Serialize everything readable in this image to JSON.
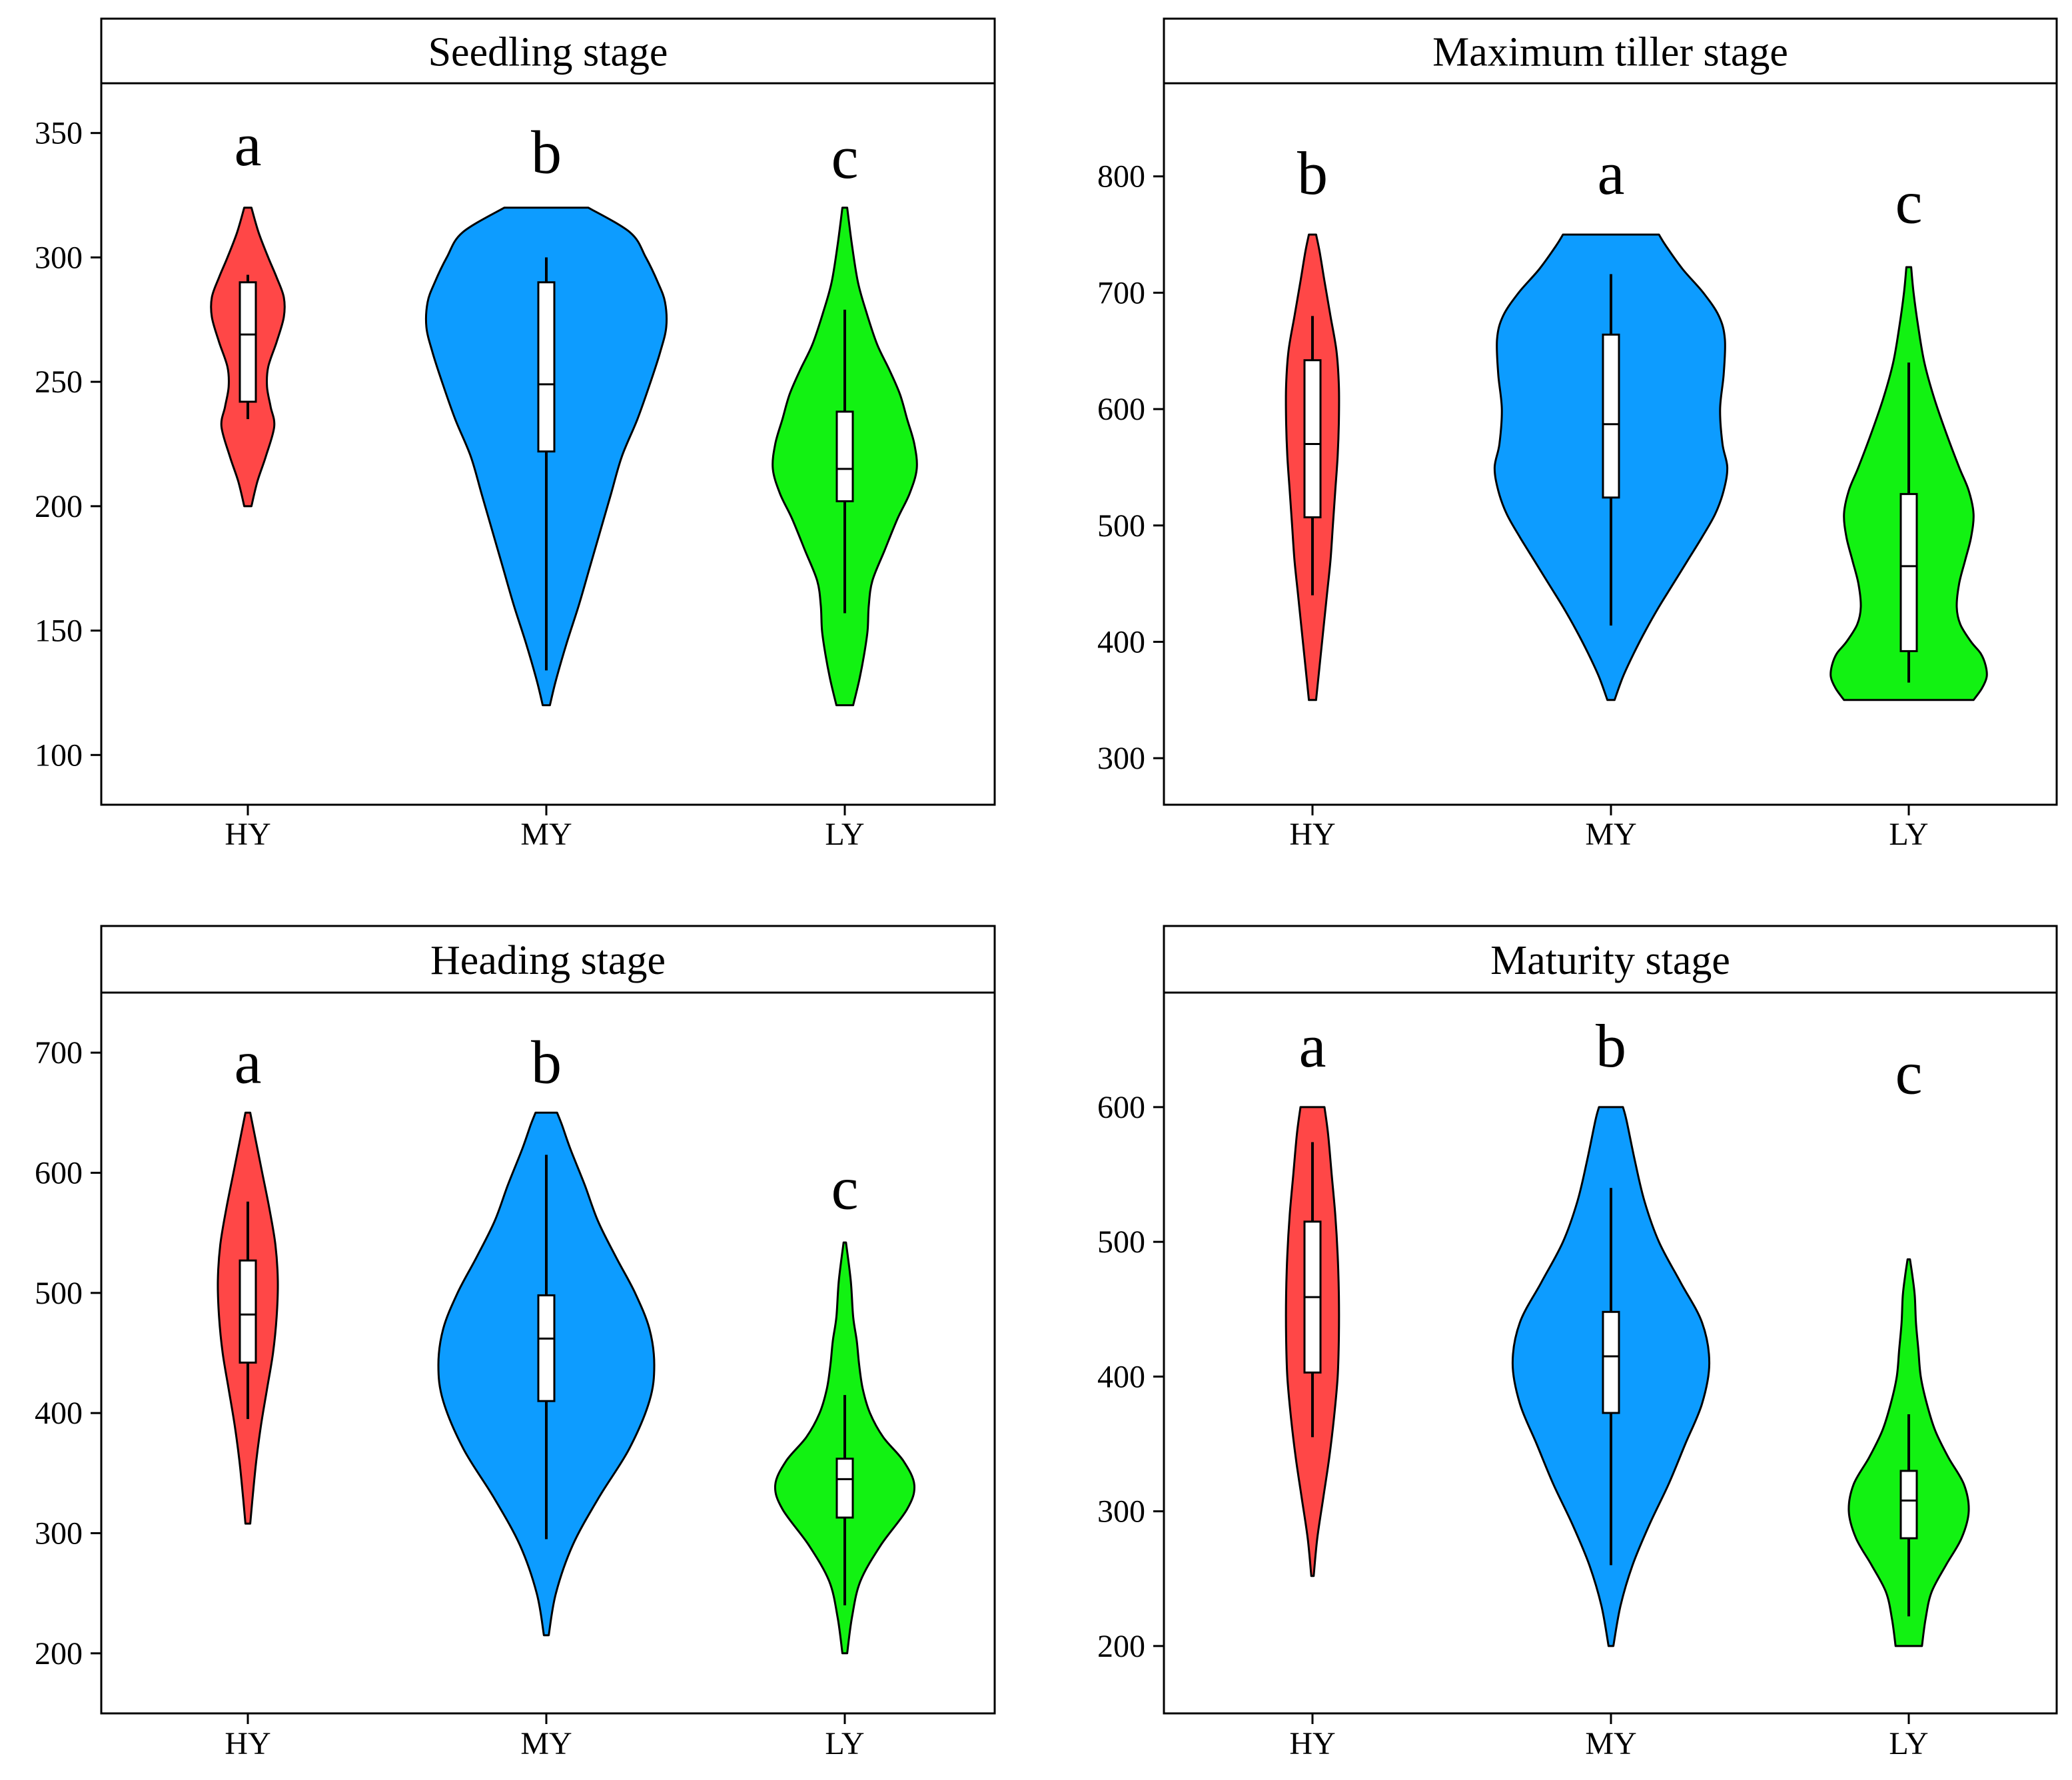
{
  "figure": {
    "colors": {
      "HY": "#ff4747",
      "MY": "#0d9cff",
      "LY": "#12f212",
      "outline": "#000000",
      "strip_bg": "#ffffff",
      "box_fill": "#ffffff"
    }
  },
  "chart_data": [
    {
      "type": "violin",
      "title": "Seedling stage",
      "xlabel": "",
      "ylabel": "",
      "categories": [
        "HY",
        "MY",
        "LY"
      ],
      "ylim": [
        80,
        370
      ],
      "yticks": [
        100,
        150,
        200,
        250,
        300,
        350
      ],
      "ytick_labels": [
        "100",
        "150",
        "200",
        "250",
        "300",
        "350"
      ],
      "groups": [
        {
          "name": "HY",
          "letter": "a",
          "letter_y": 337,
          "min": 200,
          "max": 320,
          "q1": 242,
          "median": 269,
          "q3": 290,
          "whisker_low": 235,
          "whisker_high": 293,
          "density": [
            [
              200,
              0.03
            ],
            [
              210,
              0.08
            ],
            [
              220,
              0.15
            ],
            [
              232,
              0.22
            ],
            [
              240,
              0.19
            ],
            [
              248,
              0.16
            ],
            [
              256,
              0.17
            ],
            [
              266,
              0.24
            ],
            [
              276,
              0.3
            ],
            [
              284,
              0.3
            ],
            [
              292,
              0.24
            ],
            [
              300,
              0.17
            ],
            [
              310,
              0.09
            ],
            [
              320,
              0.03
            ]
          ]
        },
        {
          "name": "MY",
          "letter": "b",
          "letter_y": 334,
          "min": 120,
          "max": 320,
          "q1": 222,
          "median": 249,
          "q3": 290,
          "whisker_low": 134,
          "whisker_high": 300,
          "density": [
            [
              120,
              0.03
            ],
            [
              130,
              0.08
            ],
            [
              145,
              0.17
            ],
            [
              160,
              0.27
            ],
            [
              175,
              0.36
            ],
            [
              190,
              0.45
            ],
            [
              205,
              0.54
            ],
            [
              220,
              0.63
            ],
            [
              235,
              0.76
            ],
            [
              250,
              0.87
            ],
            [
              262,
              0.95
            ],
            [
              272,
              1.0
            ],
            [
              282,
              0.99
            ],
            [
              290,
              0.93
            ],
            [
              300,
              0.83
            ],
            [
              310,
              0.7
            ],
            [
              320,
              0.35
            ]
          ]
        },
        {
          "name": "LY",
          "letter": "c",
          "letter_y": 332,
          "min": 120,
          "max": 320,
          "q1": 202,
          "median": 215,
          "q3": 238,
          "whisker_low": 157,
          "whisker_high": 279,
          "density": [
            [
              120,
              0.07
            ],
            [
              130,
              0.12
            ],
            [
              140,
              0.16
            ],
            [
              150,
              0.19
            ],
            [
              160,
              0.2
            ],
            [
              170,
              0.23
            ],
            [
              182,
              0.33
            ],
            [
              195,
              0.44
            ],
            [
              205,
              0.54
            ],
            [
              215,
              0.6
            ],
            [
              225,
              0.58
            ],
            [
              235,
              0.52
            ],
            [
              245,
              0.46
            ],
            [
              255,
              0.37
            ],
            [
              265,
              0.27
            ],
            [
              278,
              0.18
            ],
            [
              290,
              0.11
            ],
            [
              305,
              0.06
            ],
            [
              320,
              0.02
            ]
          ]
        }
      ]
    },
    {
      "type": "violin",
      "title": "Maximum tiller stage",
      "xlabel": "",
      "ylabel": "",
      "categories": [
        "HY",
        "MY",
        "LY"
      ],
      "ylim": [
        260,
        880
      ],
      "yticks": [
        300,
        400,
        500,
        600,
        700,
        800
      ],
      "ytick_labels": [
        "300",
        "400",
        "500",
        "600",
        "700",
        "800"
      ],
      "groups": [
        {
          "name": "HY",
          "letter": "b",
          "letter_y": 785,
          "min": 350,
          "max": 750,
          "q1": 507,
          "median": 570,
          "q3": 642,
          "whisker_low": 440,
          "whisker_high": 680,
          "density": [
            [
              350,
              0.03
            ],
            [
              380,
              0.06
            ],
            [
              410,
              0.09
            ],
            [
              440,
              0.12
            ],
            [
              470,
              0.15
            ],
            [
              500,
              0.17
            ],
            [
              530,
              0.19
            ],
            [
              560,
              0.21
            ],
            [
              590,
              0.22
            ],
            [
              620,
              0.22
            ],
            [
              650,
              0.2
            ],
            [
              680,
              0.15
            ],
            [
              710,
              0.1
            ],
            [
              735,
              0.06
            ],
            [
              750,
              0.03
            ]
          ]
        },
        {
          "name": "MY",
          "letter": "a",
          "letter_y": 785,
          "min": 350,
          "max": 750,
          "q1": 524,
          "median": 587,
          "q3": 664,
          "whisker_low": 414,
          "whisker_high": 716,
          "density": [
            [
              350,
              0.03
            ],
            [
              370,
              0.1
            ],
            [
              390,
              0.19
            ],
            [
              410,
              0.29
            ],
            [
              430,
              0.4
            ],
            [
              450,
              0.52
            ],
            [
              470,
              0.64
            ],
            [
              490,
              0.76
            ],
            [
              510,
              0.87
            ],
            [
              530,
              0.94
            ],
            [
              550,
              0.97
            ],
            [
              570,
              0.93
            ],
            [
              600,
              0.91
            ],
            [
              630,
              0.94
            ],
            [
              660,
              0.95
            ],
            [
              680,
              0.9
            ],
            [
              700,
              0.77
            ],
            [
              720,
              0.6
            ],
            [
              740,
              0.46
            ],
            [
              750,
              0.4
            ]
          ]
        },
        {
          "name": "LY",
          "letter": "c",
          "letter_y": 760,
          "min": 350,
          "max": 722,
          "q1": 392,
          "median": 465,
          "q3": 527,
          "whisker_low": 365,
          "whisker_high": 640,
          "density": [
            [
              350,
              0.54
            ],
            [
              360,
              0.61
            ],
            [
              370,
              0.65
            ],
            [
              380,
              0.64
            ],
            [
              390,
              0.6
            ],
            [
              400,
              0.52
            ],
            [
              415,
              0.43
            ],
            [
              430,
              0.4
            ],
            [
              450,
              0.42
            ],
            [
              470,
              0.47
            ],
            [
              490,
              0.52
            ],
            [
              510,
              0.54
            ],
            [
              530,
              0.5
            ],
            [
              550,
              0.42
            ],
            [
              580,
              0.31
            ],
            [
              610,
              0.21
            ],
            [
              640,
              0.13
            ],
            [
              670,
              0.08
            ],
            [
              700,
              0.04
            ],
            [
              722,
              0.02
            ]
          ]
        }
      ]
    },
    {
      "type": "violin",
      "title": "Heading stage",
      "xlabel": "",
      "ylabel": "",
      "categories": [
        "HY",
        "MY",
        "LY"
      ],
      "ylim": [
        150,
        750
      ],
      "yticks": [
        200,
        300,
        400,
        500,
        600,
        700
      ],
      "ytick_labels": [
        "200",
        "300",
        "400",
        "500",
        "600",
        "700"
      ],
      "groups": [
        {
          "name": "HY",
          "letter": "a",
          "letter_y": 675,
          "min": 308,
          "max": 650,
          "q1": 442,
          "median": 482,
          "q3": 527,
          "whisker_low": 395,
          "whisker_high": 576,
          "density": [
            [
              308,
              0.02
            ],
            [
              330,
              0.04
            ],
            [
              360,
              0.07
            ],
            [
              390,
              0.11
            ],
            [
              420,
              0.16
            ],
            [
              450,
              0.21
            ],
            [
              480,
              0.24
            ],
            [
              510,
              0.25
            ],
            [
              540,
              0.23
            ],
            [
              570,
              0.18
            ],
            [
              600,
              0.12
            ],
            [
              625,
              0.07
            ],
            [
              650,
              0.02
            ]
          ]
        },
        {
          "name": "MY",
          "letter": "b",
          "letter_y": 675,
          "min": 215,
          "max": 650,
          "q1": 410,
          "median": 462,
          "q3": 498,
          "whisker_low": 295,
          "whisker_high": 615,
          "density": [
            [
              215,
              0.02
            ],
            [
              250,
              0.08
            ],
            [
              290,
              0.22
            ],
            [
              330,
              0.44
            ],
            [
              370,
              0.69
            ],
            [
              410,
              0.86
            ],
            [
              440,
              0.9
            ],
            [
              470,
              0.86
            ],
            [
              500,
              0.74
            ],
            [
              530,
              0.58
            ],
            [
              560,
              0.43
            ],
            [
              590,
              0.32
            ],
            [
              620,
              0.2
            ],
            [
              640,
              0.13
            ],
            [
              650,
              0.09
            ]
          ]
        },
        {
          "name": "LY",
          "letter": "c",
          "letter_y": 570,
          "min": 200,
          "max": 542,
          "q1": 313,
          "median": 345,
          "q3": 362,
          "whisker_low": 240,
          "whisker_high": 415,
          "density": [
            [
              200,
              0.02
            ],
            [
              230,
              0.06
            ],
            [
              260,
              0.13
            ],
            [
              290,
              0.3
            ],
            [
              320,
              0.52
            ],
            [
              340,
              0.58
            ],
            [
              360,
              0.49
            ],
            [
              380,
              0.32
            ],
            [
              400,
              0.21
            ],
            [
              420,
              0.15
            ],
            [
              440,
              0.12
            ],
            [
              460,
              0.1
            ],
            [
              480,
              0.07
            ],
            [
              510,
              0.05
            ],
            [
              542,
              0.01
            ]
          ]
        }
      ]
    },
    {
      "type": "violin",
      "title": "Maturity stage",
      "xlabel": "",
      "ylabel": "",
      "categories": [
        "HY",
        "MY",
        "LY"
      ],
      "ylim": [
        150,
        685
      ],
      "yticks": [
        200,
        300,
        400,
        500,
        600
      ],
      "ytick_labels": [
        "200",
        "300",
        "400",
        "500",
        "600"
      ],
      "groups": [
        {
          "name": "HY",
          "letter": "a",
          "letter_y": 630,
          "min": 252,
          "max": 600,
          "q1": 403,
          "median": 459,
          "q3": 515,
          "whisker_low": 355,
          "whisker_high": 574,
          "density": [
            [
              252,
              0.01
            ],
            [
              280,
              0.04
            ],
            [
              310,
              0.09
            ],
            [
              340,
              0.14
            ],
            [
              370,
              0.18
            ],
            [
              400,
              0.21
            ],
            [
              430,
              0.22
            ],
            [
              460,
              0.22
            ],
            [
              490,
              0.21
            ],
            [
              520,
              0.19
            ],
            [
              550,
              0.16
            ],
            [
              580,
              0.13
            ],
            [
              600,
              0.1
            ]
          ]
        },
        {
          "name": "MY",
          "letter": "b",
          "letter_y": 630,
          "min": 200,
          "max": 600,
          "q1": 373,
          "median": 415,
          "q3": 448,
          "whisker_low": 260,
          "whisker_high": 540,
          "density": [
            [
              200,
              0.02
            ],
            [
              230,
              0.08
            ],
            [
              260,
              0.18
            ],
            [
              290,
              0.32
            ],
            [
              320,
              0.48
            ],
            [
              350,
              0.62
            ],
            [
              380,
              0.76
            ],
            [
              410,
              0.82
            ],
            [
              440,
              0.76
            ],
            [
              470,
              0.58
            ],
            [
              500,
              0.4
            ],
            [
              530,
              0.28
            ],
            [
              560,
              0.2
            ],
            [
              590,
              0.13
            ],
            [
              600,
              0.1
            ]
          ]
        },
        {
          "name": "LY",
          "letter": "c",
          "letter_y": 610,
          "min": 200,
          "max": 487,
          "q1": 280,
          "median": 308,
          "q3": 330,
          "whisker_low": 222,
          "whisker_high": 372,
          "density": [
            [
              200,
              0.11
            ],
            [
              220,
              0.14
            ],
            [
              240,
              0.19
            ],
            [
              260,
              0.31
            ],
            [
              280,
              0.44
            ],
            [
              300,
              0.5
            ],
            [
              320,
              0.46
            ],
            [
              340,
              0.33
            ],
            [
              360,
              0.22
            ],
            [
              380,
              0.15
            ],
            [
              400,
              0.1
            ],
            [
              420,
              0.08
            ],
            [
              440,
              0.06
            ],
            [
              460,
              0.05
            ],
            [
              475,
              0.03
            ],
            [
              487,
              0.01
            ]
          ]
        }
      ]
    }
  ]
}
